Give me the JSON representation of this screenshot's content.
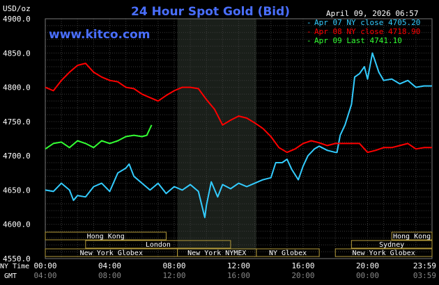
{
  "chart_data": {
    "type": "line",
    "title": "24 Hour Spot Gold (Bid)",
    "watermark": "www.kitco.com",
    "timestamp": "April 09, 2026 06:57",
    "y_unit": "USD/oz",
    "ylim": [
      4550,
      4900
    ],
    "yticks": [
      "4900.0",
      "4850.0",
      "4800.0",
      "4750.0",
      "4700.0",
      "4650.0",
      "4600.0",
      "4550.0"
    ],
    "ytick_values": [
      4900,
      4850,
      4800,
      4750,
      4700,
      4650,
      4600,
      4550
    ],
    "x_axis_labels": {
      "row1_label": "NY Time",
      "row2_label": "GMT",
      "ny_time": [
        "00:00",
        "04:00",
        "08:00",
        "12:00",
        "16:00",
        "20:00",
        "23:59"
      ],
      "gmt": [
        "04:00",
        "08:00",
        "12:00",
        "16:00",
        "20:00",
        "00:00",
        "03:59"
      ]
    },
    "xlim_hours": [
      0,
      24
    ],
    "nymex_shade_hours": [
      8.2,
      13.1
    ],
    "grid": true,
    "legend_position": "top-right",
    "series": [
      {
        "name": "Apr 07 NY close 4705.20",
        "color": "#33ccff",
        "x": [
          0,
          0.5,
          1,
          1.5,
          1.75,
          2,
          2.5,
          3,
          3.5,
          4,
          4.5,
          5,
          5.2,
          5.5,
          6,
          6.5,
          7,
          7.5,
          8,
          8.5,
          9,
          9.5,
          9.9,
          10,
          10.3,
          10.7,
          11,
          11.5,
          12,
          12.5,
          13,
          13.5,
          14,
          14.3,
          14.7,
          15,
          15.3,
          15.7,
          16,
          16.3,
          16.7,
          17,
          17.5,
          18,
          18.1,
          18.3,
          18.6,
          19,
          19.2,
          19.5,
          19.8,
          20,
          20.3,
          20.7,
          21,
          21.5,
          22,
          22.5,
          23,
          23.5,
          24
        ],
        "y": [
          4650,
          4648,
          4660,
          4650,
          4635,
          4642,
          4640,
          4655,
          4660,
          4648,
          4675,
          4682,
          4688,
          4670,
          4660,
          4650,
          4660,
          4645,
          4655,
          4650,
          4658,
          4648,
          4610,
          4628,
          4662,
          4640,
          4658,
          4652,
          4660,
          4655,
          4660,
          4665,
          4668,
          4690,
          4690,
          4695,
          4680,
          4665,
          4685,
          4700,
          4710,
          4714,
          4708,
          4705,
          4705,
          4730,
          4745,
          4775,
          4815,
          4820,
          4830,
          4812,
          4850,
          4822,
          4810,
          4812,
          4805,
          4810,
          4800,
          4802,
          4802
        ]
      },
      {
        "name": "Apr 08 NY close 4718.90",
        "color": "#ff0000",
        "x": [
          0,
          0.5,
          1,
          1.5,
          2,
          2.5,
          3,
          3.5,
          4,
          4.5,
          5,
          5.5,
          6,
          6.5,
          7,
          7.5,
          8,
          8.5,
          9,
          9.5,
          10,
          10.5,
          11,
          11.5,
          12,
          12.5,
          13,
          13.5,
          14,
          14.5,
          15,
          15.5,
          16,
          16.5,
          17,
          17.5,
          18,
          18.5,
          19,
          19.5,
          20,
          20.5,
          21,
          21.5,
          22,
          22.5,
          23,
          23.5,
          24
        ],
        "y": [
          4800,
          4795,
          4810,
          4822,
          4832,
          4835,
          4822,
          4815,
          4810,
          4808,
          4800,
          4798,
          4790,
          4785,
          4780,
          4788,
          4795,
          4800,
          4800,
          4798,
          4782,
          4768,
          4745,
          4752,
          4758,
          4755,
          4748,
          4740,
          4728,
          4712,
          4705,
          4710,
          4718,
          4722,
          4719,
          4715,
          4718,
          4718,
          4718,
          4718,
          4705,
          4708,
          4712,
          4712,
          4715,
          4718,
          4710,
          4712,
          4712
        ]
      },
      {
        "name": "Apr 09 Last 4741.10",
        "color": "#33ff33",
        "x": [
          0,
          0.5,
          1,
          1.5,
          2,
          2.5,
          3,
          3.5,
          4,
          4.5,
          5,
          5.5,
          6,
          6.3,
          6.6
        ],
        "y": [
          4710,
          4718,
          4720,
          4712,
          4722,
          4718,
          4712,
          4722,
          4718,
          4722,
          4728,
          4730,
          4728,
          4730,
          4745
        ]
      }
    ],
    "sessions": [
      {
        "name": "Hong Kong",
        "start": 0,
        "end": 7.5,
        "row": 0
      },
      {
        "name": "Hong Kong",
        "start": 21.5,
        "end": 24,
        "row": 0
      },
      {
        "name": "London",
        "start": 2.5,
        "end": 11.5,
        "row": 1
      },
      {
        "name": "Sydney",
        "start": 19.0,
        "end": 24,
        "row": 1
      },
      {
        "name": "New York Globex",
        "start": 0,
        "end": 8.2,
        "row": 2
      },
      {
        "name": "New York NYMEX",
        "start": 8.2,
        "end": 13.1,
        "row": 2
      },
      {
        "name": "NY Globex",
        "start": 13.1,
        "end": 17.0,
        "row": 2
      },
      {
        "name": "New York Globex",
        "start": 18.0,
        "end": 24,
        "row": 2
      }
    ]
  }
}
